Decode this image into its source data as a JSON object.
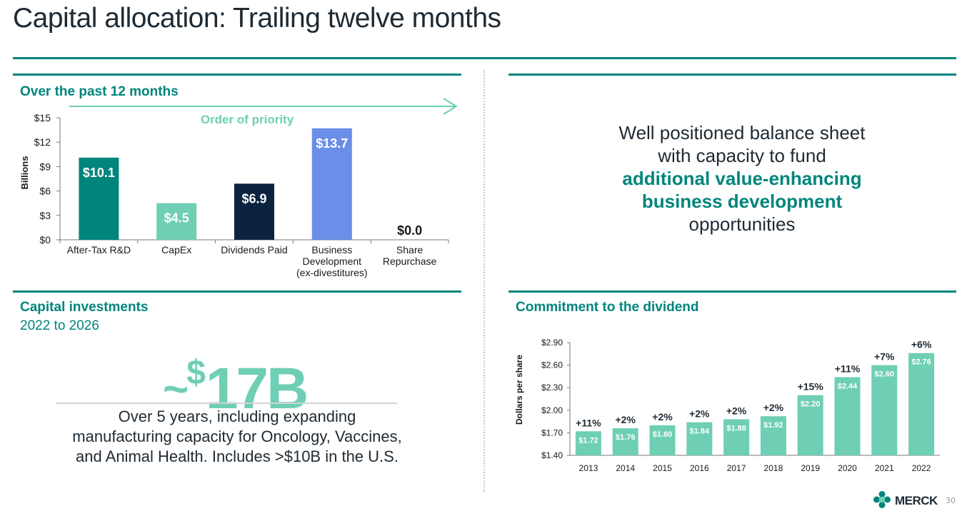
{
  "page": {
    "title": "Capital allocation: Trailing twelve months",
    "page_number": "30",
    "logo_text": "MERCK"
  },
  "colors": {
    "teal": "#00857c",
    "light_teal": "#6ecfb4",
    "navy": "#0c2340",
    "periwinkle": "#6b8ee8"
  },
  "sections": {
    "past12": {
      "heading": "Over the past 12 months",
      "arrow_label": "Order of priority"
    },
    "balance": {
      "line1": "Well positioned balance sheet",
      "line2": "with capacity to fund",
      "accent1": "additional value-enhancing",
      "accent2": "business development",
      "line3": "opportunities"
    },
    "capital": {
      "heading": "Capital investments",
      "subheading": "2022 to 2026",
      "big_prefix": "~",
      "big_currency": "$",
      "big_value": "17B",
      "desc_line1": "Over 5 years, including expanding",
      "desc_line2": "manufacturing capacity for Oncology, Vaccines,",
      "desc_line3": "and Animal Health. Includes >$10B in the U.S."
    },
    "dividend": {
      "heading": "Commitment to the dividend"
    }
  },
  "chart_data": [
    {
      "type": "bar",
      "title": "Over the past 12 months",
      "ylabel": "Billions",
      "ylim": [
        0,
        15
      ],
      "yticks": [
        "$0",
        "$3",
        "$6",
        "$9",
        "$12",
        "$15"
      ],
      "grid": false,
      "annotation": "Order of priority",
      "categories": [
        [
          "After-Tax R&D"
        ],
        [
          "CapEx"
        ],
        [
          "Dividends Paid"
        ],
        [
          "Business",
          "Development",
          "(ex-divestitures)"
        ],
        [
          "Share",
          "Repurchase"
        ]
      ],
      "values": [
        10.1,
        4.5,
        6.9,
        13.7,
        0.0
      ],
      "value_labels": [
        "$10.1",
        "$4.5",
        "$6.9",
        "$13.7",
        "$0.0"
      ],
      "bar_colors": [
        "#00857c",
        "#6ecfb4",
        "#0c2340",
        "#6b8ee8",
        "#6ecfb4"
      ]
    },
    {
      "type": "bar",
      "title": "Commitment to the dividend",
      "ylabel": "Dollars per share",
      "ylim": [
        1.4,
        2.9
      ],
      "yticks": [
        "$1.40",
        "$1.70",
        "$2.00",
        "$2.30",
        "$2.60",
        "$2.90"
      ],
      "grid": false,
      "categories": [
        "2013",
        "2014",
        "2015",
        "2016",
        "2017",
        "2018",
        "2019",
        "2020",
        "2021",
        "2022"
      ],
      "values": [
        1.72,
        1.76,
        1.8,
        1.84,
        1.88,
        1.92,
        2.2,
        2.44,
        2.6,
        2.76
      ],
      "value_labels": [
        "$1.72",
        "$1.76",
        "$1.80",
        "$1.84",
        "$1.88",
        "$1.92",
        "$2.20",
        "$2.44",
        "$2.60",
        "$2.76"
      ],
      "growth_labels": [
        "+11%",
        "+2%",
        "+2%",
        "+2%",
        "+2%",
        "+2%",
        "+15%",
        "+11%",
        "+7%",
        "+6%"
      ],
      "bar_color": "#6ecfb4"
    }
  ]
}
